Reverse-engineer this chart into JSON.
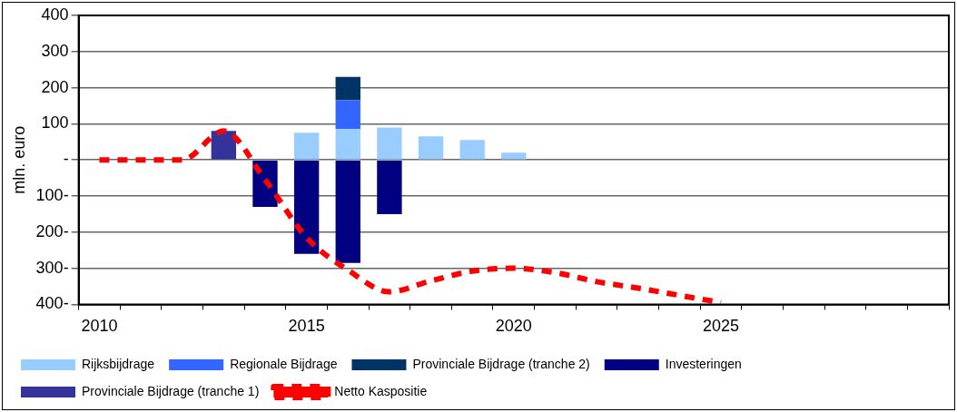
{
  "chart_data": {
    "type": "bar",
    "ylabel": "mln. euro",
    "stacked": true,
    "categories": [
      "2010",
      null,
      null,
      null,
      null,
      "2015",
      null,
      null,
      null,
      null,
      "2020",
      null,
      null,
      null,
      null,
      "2025",
      null,
      null,
      null,
      null,
      null
    ],
    "series": [
      {
        "name": "Rijksbijdrage",
        "color": "#99ccff",
        "values": [
          null,
          null,
          null,
          null,
          null,
          75,
          85,
          90,
          65,
          55,
          20,
          null,
          null,
          null,
          null,
          null,
          null,
          null,
          null,
          null,
          null
        ]
      },
      {
        "name": "Regionale Bijdrage",
        "color": "#3366ff",
        "values": [
          null,
          null,
          null,
          null,
          null,
          null,
          80,
          null,
          null,
          null,
          null,
          null,
          null,
          null,
          null,
          null,
          null,
          null,
          null,
          null,
          null
        ]
      },
      {
        "name": "Provinciale Bijdrage (tranche 2)",
        "color": "#003366",
        "values": [
          null,
          null,
          null,
          null,
          null,
          null,
          65,
          null,
          null,
          null,
          null,
          null,
          null,
          null,
          null,
          null,
          null,
          null,
          null,
          null,
          null
        ]
      },
      {
        "name": "Investeringen",
        "color": "#000080",
        "values": [
          null,
          null,
          null,
          null,
          -130,
          -260,
          -285,
          -150,
          null,
          null,
          null,
          null,
          null,
          null,
          null,
          null,
          null,
          null,
          null,
          null,
          null
        ]
      },
      {
        "name": "Provinciale Bijdrage (tranche 1)",
        "color": "#333399",
        "values": [
          null,
          null,
          null,
          80,
          null,
          null,
          null,
          null,
          null,
          null,
          null,
          null,
          null,
          null,
          null,
          null,
          null,
          null,
          null,
          null,
          null
        ]
      },
      {
        "name": "Netto Kaspositie",
        "type": "line",
        "color": "#ff0000",
        "line_style": "dashed",
        "values": [
          0,
          0,
          0,
          80,
          -55,
          -215,
          -305,
          -365,
          -335,
          -308,
          -300,
          -312,
          -337,
          -355,
          -375,
          -395,
          null,
          null,
          null,
          null,
          null
        ]
      }
    ],
    "ylim": [
      -400,
      400
    ],
    "yticks": [
      {
        "value": -400,
        "label": "400-"
      },
      {
        "value": -300,
        "label": "300-"
      },
      {
        "value": -200,
        "label": "200-"
      },
      {
        "value": -100,
        "label": "100-"
      },
      {
        "value": 0,
        "label": "-"
      },
      100,
      200,
      300,
      400
    ],
    "grid": "y",
    "legend": "bottom",
    "marker": "none"
  }
}
